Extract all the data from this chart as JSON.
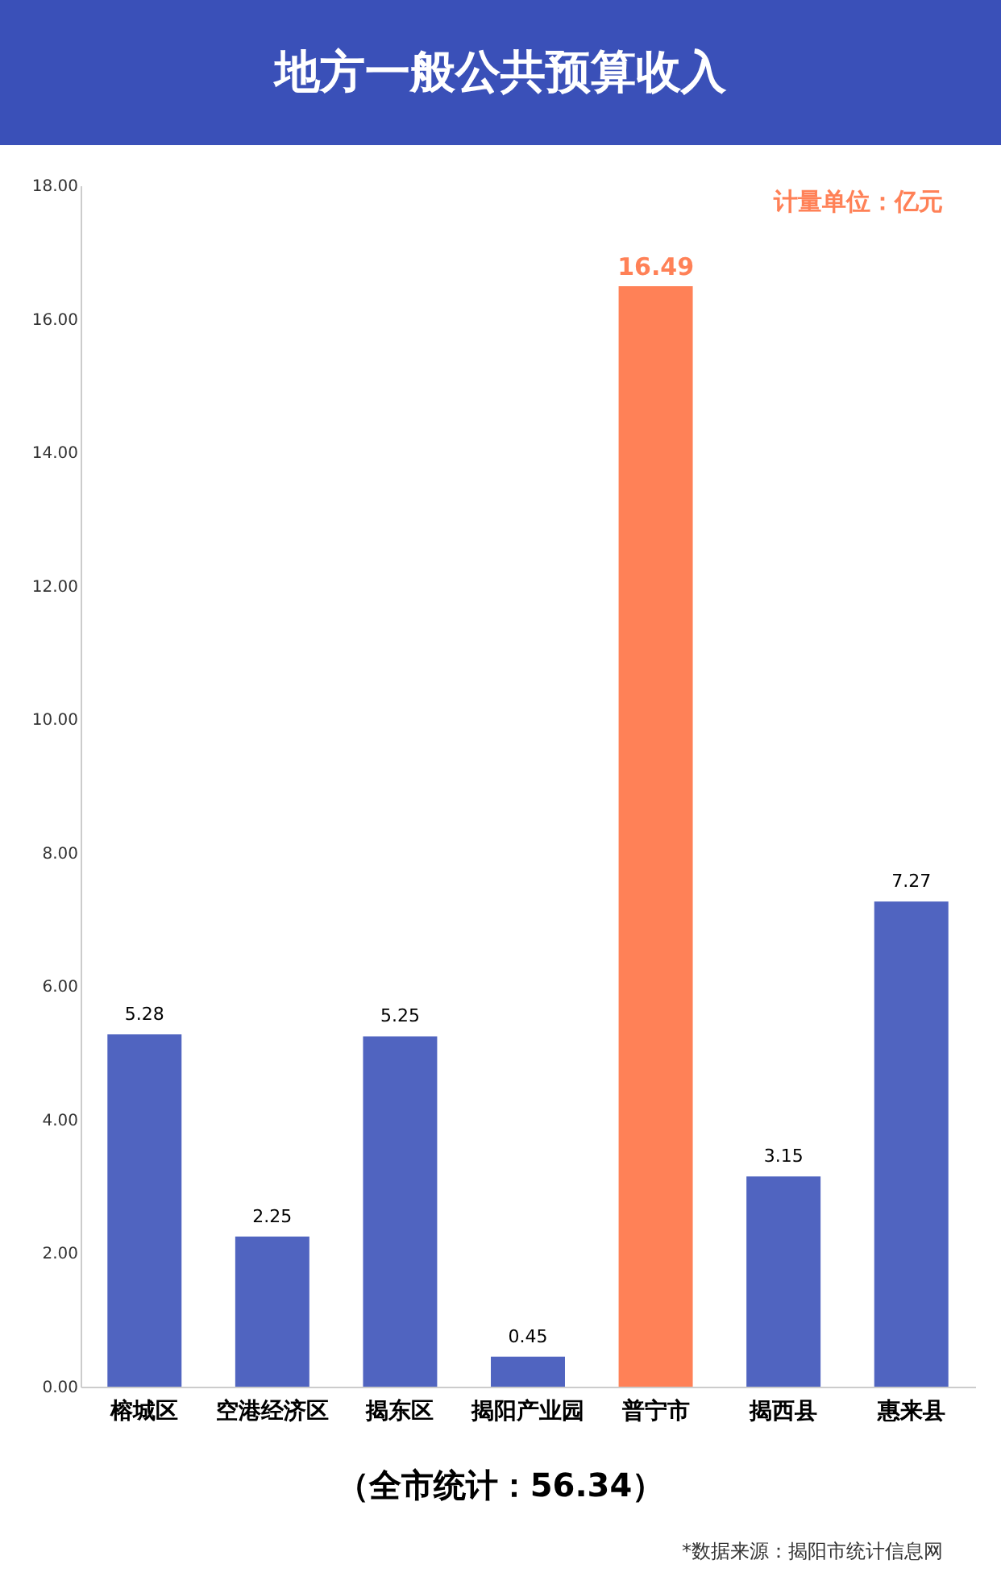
{
  "chart_data": {
    "type": "bar",
    "title": "地方一般公共预算收入",
    "categories": [
      "榕城区",
      "空港经济区",
      "揭东区",
      "揭阳产业园",
      "普宁市",
      "揭西县",
      "惠来县"
    ],
    "values": [
      5.28,
      2.25,
      5.25,
      0.45,
      16.49,
      3.15,
      7.27
    ],
    "colors": [
      "#5064c0",
      "#5064c0",
      "#5064c0",
      "#5064c0",
      "#ff8157",
      "#5064c0",
      "#5064c0"
    ],
    "ylim": [
      0,
      18
    ],
    "yticks": [
      {
        "value": 0,
        "label": "0.00"
      },
      {
        "value": 2,
        "label": "2.00"
      },
      {
        "value": 4,
        "label": "4.00"
      },
      {
        "value": 6,
        "label": "6.00"
      },
      {
        "value": 8,
        "label": "8.00"
      },
      {
        "value": 10,
        "label": "10.00"
      },
      {
        "value": 12,
        "label": "12.00"
      },
      {
        "value": 14,
        "label": "14.00"
      },
      {
        "value": 16,
        "label": "16.00"
      },
      {
        "value": 18,
        "label": "18.00"
      }
    ],
    "data_labels": true,
    "grid": false,
    "annotations": [
      "计量单位：亿元",
      "（全市统计：56.34）",
      "*数据来源：揭阳市统计信息网"
    ]
  }
}
